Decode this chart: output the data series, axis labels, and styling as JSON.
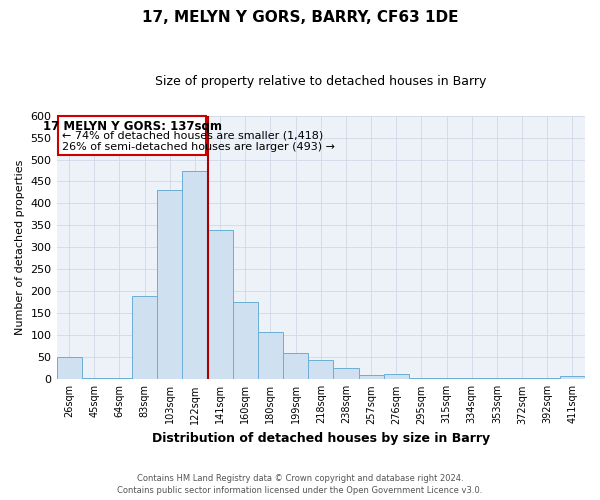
{
  "title": "17, MELYN Y GORS, BARRY, CF63 1DE",
  "subtitle": "Size of property relative to detached houses in Barry",
  "xlabel": "Distribution of detached houses by size in Barry",
  "ylabel": "Number of detached properties",
  "bar_color": "#cfe0f0",
  "bar_edge_color": "#6baed6",
  "categories": [
    "26sqm",
    "45sqm",
    "64sqm",
    "83sqm",
    "103sqm",
    "122sqm",
    "141sqm",
    "160sqm",
    "180sqm",
    "199sqm",
    "218sqm",
    "238sqm",
    "257sqm",
    "276sqm",
    "295sqm",
    "315sqm",
    "334sqm",
    "353sqm",
    "372sqm",
    "392sqm",
    "411sqm"
  ],
  "values": [
    50,
    2,
    2,
    190,
    430,
    475,
    340,
    175,
    107,
    60,
    43,
    25,
    10,
    13,
    2,
    2,
    2,
    2,
    2,
    2,
    7
  ],
  "ylim": [
    0,
    600
  ],
  "yticks": [
    0,
    50,
    100,
    150,
    200,
    250,
    300,
    350,
    400,
    450,
    500,
    550,
    600
  ],
  "vline_index": 6,
  "vline_color": "#aa0000",
  "annotation_title": "17 MELYN Y GORS: 137sqm",
  "annotation_line1": "← 74% of detached houses are smaller (1,418)",
  "annotation_line2": "26% of semi-detached houses are larger (493) →",
  "annotation_box_color": "#ffffff",
  "annotation_box_edge": "#cc0000",
  "footer_line1": "Contains HM Land Registry data © Crown copyright and database right 2024.",
  "footer_line2": "Contains public sector information licensed under the Open Government Licence v3.0.",
  "grid_color": "#d0d8e8",
  "bg_color": "#edf2f9"
}
